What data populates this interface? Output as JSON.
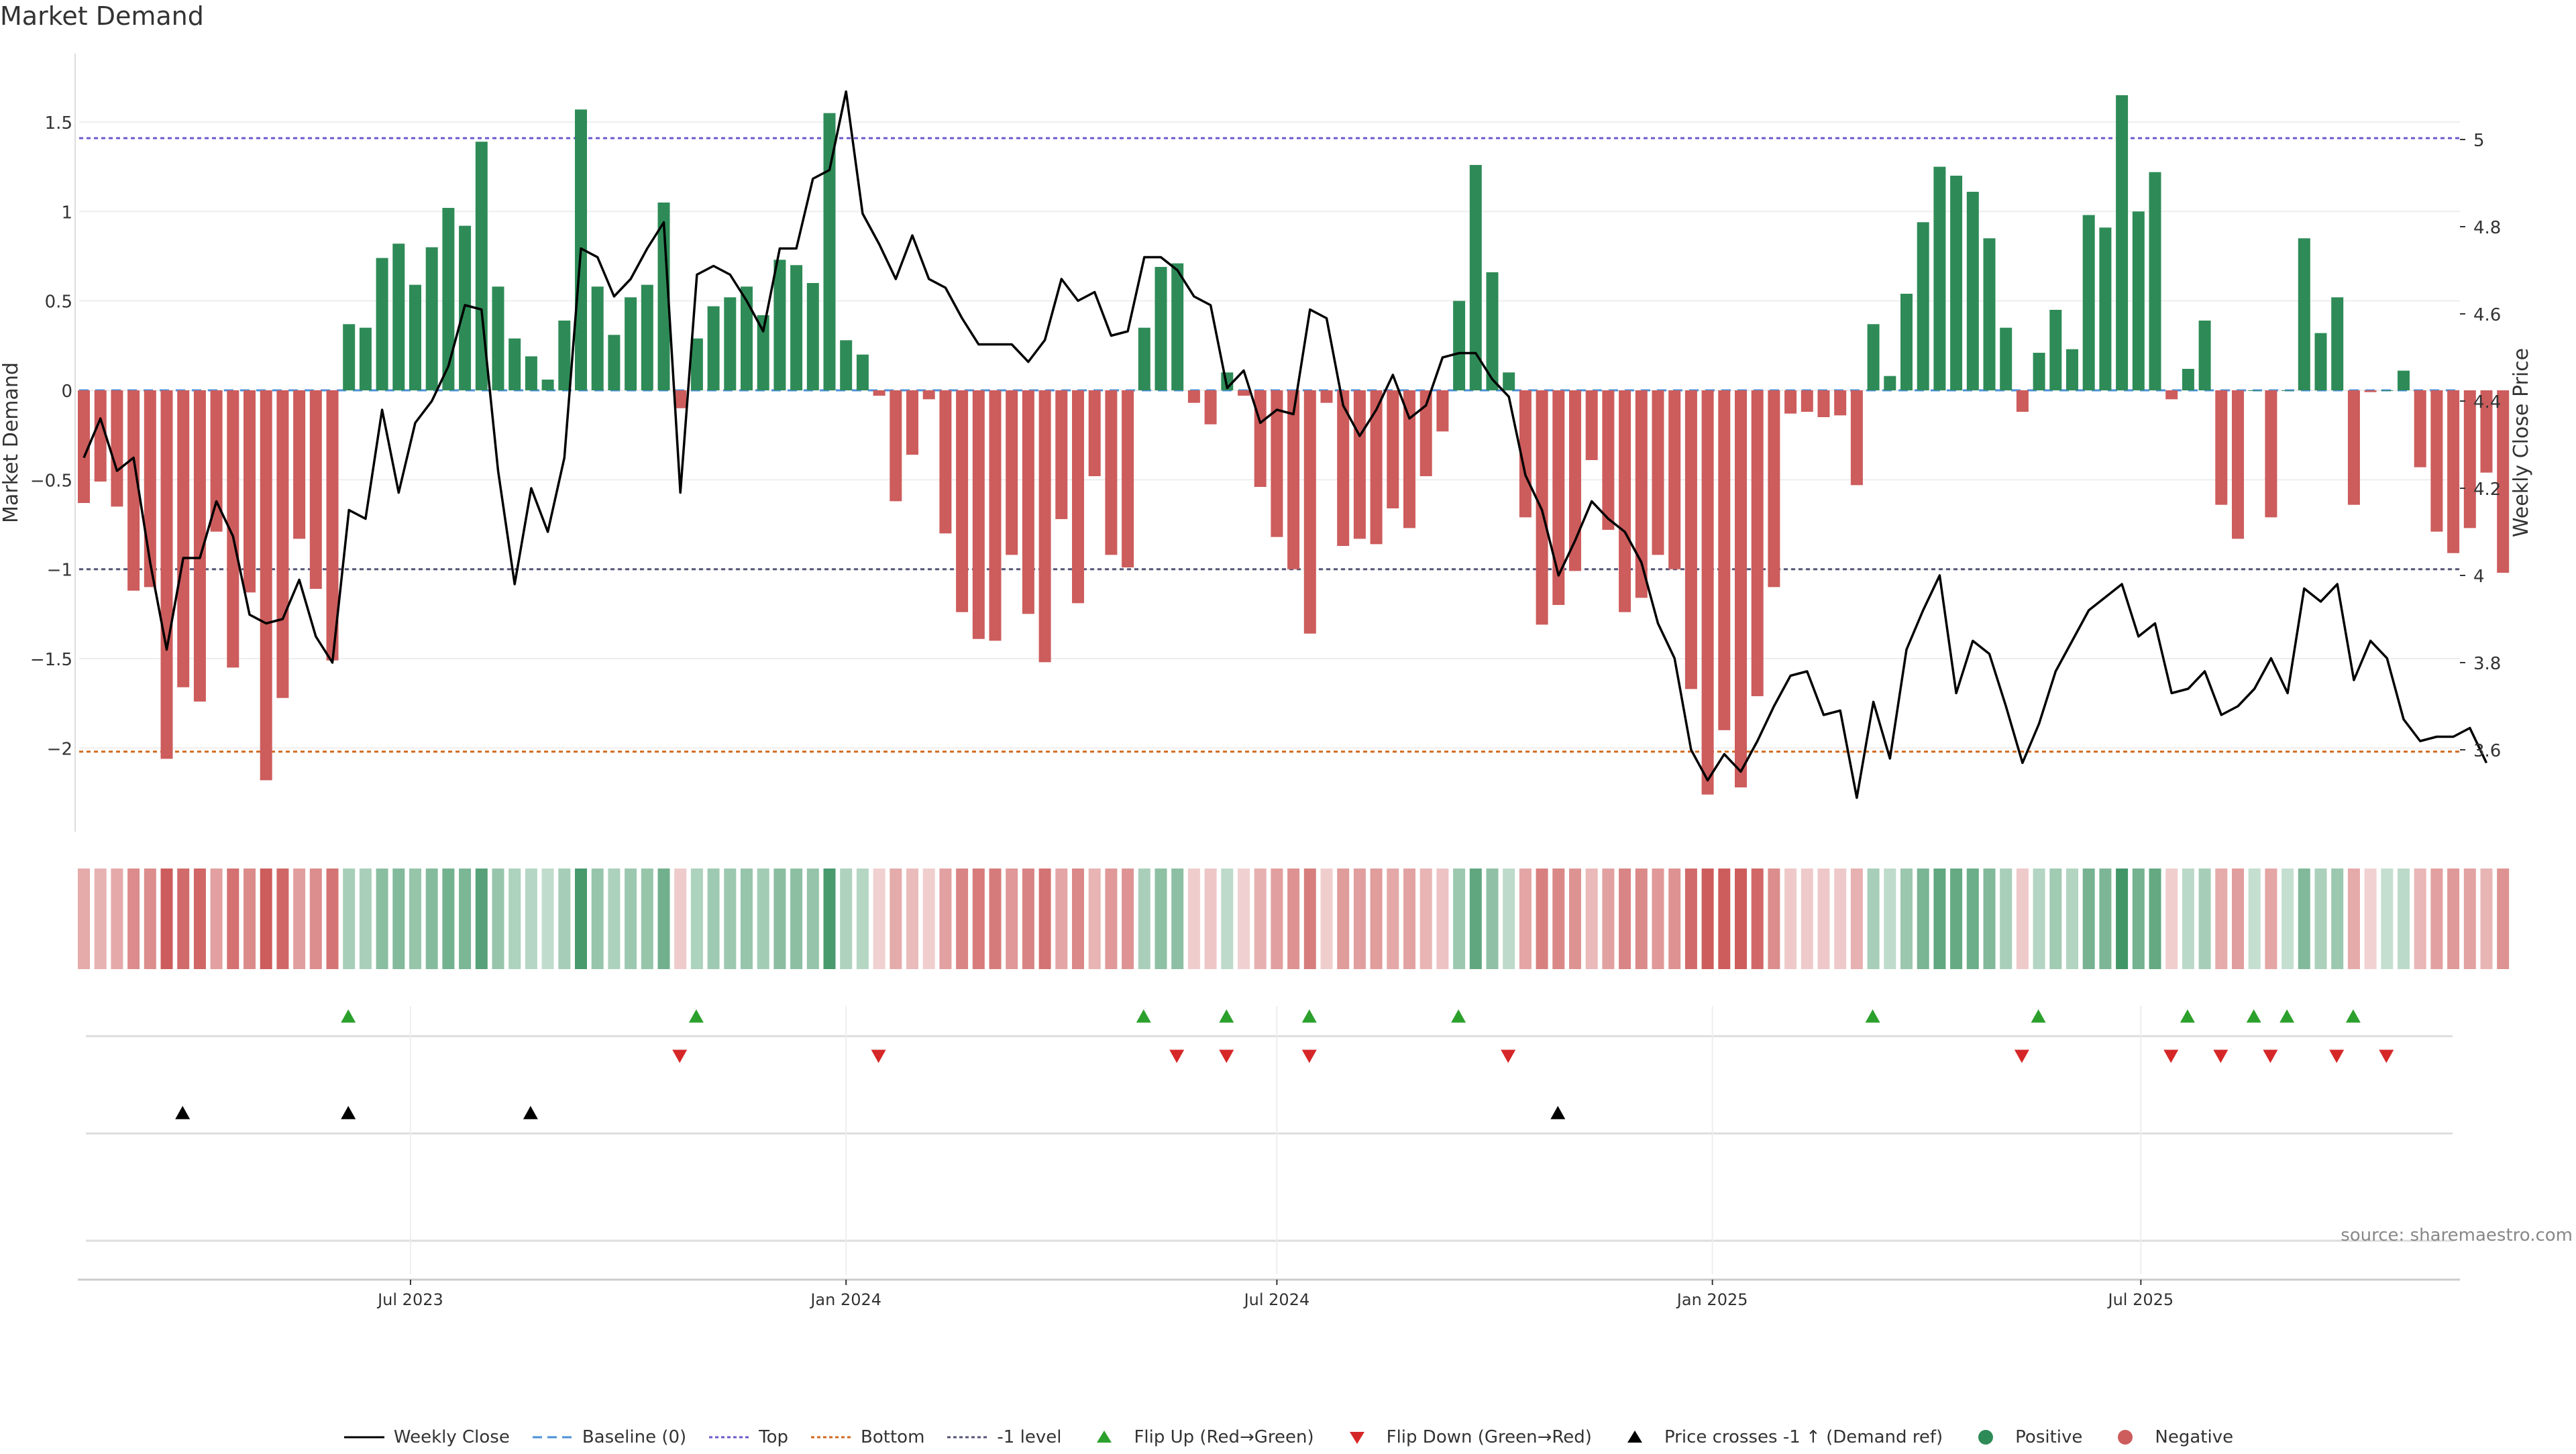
{
  "title": "Market Demand",
  "source": "source: sharemaestro.com",
  "colors": {
    "positive": "#2e8b57",
    "negative": "#cd5c5c",
    "price": "#000000",
    "baseline": "#4a90d9",
    "top": "#6a5acd",
    "bottom": "#d2691e",
    "minus1": "#555577",
    "flip_up": "#2ca02c",
    "flip_down": "#d62728",
    "cross": "#000000"
  },
  "legend": [
    {
      "key": "price",
      "label": "Weekly Close",
      "shape": "line"
    },
    {
      "key": "baseline",
      "label": "Baseline (0)",
      "shape": "dash"
    },
    {
      "key": "top",
      "label": "Top",
      "shape": "dot"
    },
    {
      "key": "bottom",
      "label": "Bottom",
      "shape": "dot"
    },
    {
      "key": "minus1",
      "label": "-1 level",
      "shape": "dot"
    },
    {
      "key": "flip_up",
      "label": "Flip Up (Red→Green)",
      "shape": "tri-up"
    },
    {
      "key": "flip_down",
      "label": "Flip Down (Green→Red)",
      "shape": "tri-down"
    },
    {
      "key": "cross",
      "label": "Price crosses -1 ↑ (Demand ref)",
      "shape": "tri-up"
    },
    {
      "key": "positive",
      "label": "Positive",
      "shape": "circle"
    },
    {
      "key": "negative",
      "label": "Negative",
      "shape": "circle"
    }
  ],
  "chart_data": {
    "type": "bar",
    "title": "Market Demand",
    "ylabel": "Market Demand",
    "y2label": "Weekly Close Price",
    "ylim": [
      -2.4,
      1.9
    ],
    "y2lim": [
      3.42,
      5.21
    ],
    "yticks": [
      1.5,
      1,
      0.5,
      0,
      -0.5,
      -1,
      -1.5,
      -2
    ],
    "ytick_labels": [
      "1.5",
      "1",
      "0.5",
      "0",
      "−0.5",
      "−1",
      "−1.5",
      "−2"
    ],
    "y2ticks": [
      5,
      4.8,
      4.6,
      4.4,
      4.2,
      4,
      3.8,
      3.6
    ],
    "y2tick_labels": [
      "5",
      "4.8",
      "4.6",
      "4.4",
      "4.2",
      "4",
      "3.8",
      "3.6"
    ],
    "top_level": 1.41,
    "bottom_level": -2.02,
    "minus1_level": -1.0,
    "start_date": "2023-02-13",
    "x_ticks": [
      {
        "date": "2023-07-01",
        "label": "Jul 2023"
      },
      {
        "date": "2024-01-01",
        "label": "Jan 2024"
      },
      {
        "date": "2024-07-01",
        "label": "Jul 2024"
      },
      {
        "date": "2025-01-01",
        "label": "Jan 2025"
      },
      {
        "date": "2025-07-01",
        "label": "Jul 2025"
      }
    ],
    "demand": [
      -0.63,
      -0.51,
      -0.65,
      -1.12,
      -1.1,
      -2.06,
      -1.66,
      -1.74,
      -0.79,
      -1.55,
      -1.13,
      -2.18,
      -1.72,
      -0.83,
      -1.11,
      -1.51,
      0.37,
      0.35,
      0.74,
      0.82,
      0.59,
      0.8,
      1.02,
      0.92,
      1.39,
      0.58,
      0.29,
      0.19,
      0.06,
      0.39,
      1.57,
      0.58,
      0.31,
      0.52,
      0.59,
      1.05,
      -0.1,
      0.29,
      0.47,
      0.52,
      0.58,
      0.42,
      0.73,
      0.7,
      0.6,
      1.55,
      0.28,
      0.2,
      -0.03,
      -0.62,
      -0.36,
      -0.05,
      -0.8,
      -1.24,
      -1.39,
      -1.4,
      -0.92,
      -1.25,
      -1.52,
      -0.72,
      -1.19,
      -0.48,
      -0.92,
      -0.99,
      0.35,
      0.69,
      0.71,
      -0.07,
      -0.19,
      0.1,
      -0.03,
      -0.54,
      -0.82,
      -1.0,
      -1.36,
      -0.07,
      -0.87,
      -0.83,
      -0.86,
      -0.66,
      -0.77,
      -0.48,
      -0.23,
      0.5,
      1.26,
      0.66,
      0.1,
      -0.71,
      -1.31,
      -1.2,
      -1.01,
      -0.39,
      -0.78,
      -1.24,
      -1.16,
      -0.92,
      -1.0,
      -1.67,
      -2.26,
      -1.9,
      -2.22,
      -1.71,
      -1.1,
      -0.13,
      -0.12,
      -0.15,
      -0.14,
      -0.53,
      0.37,
      0.08,
      0.54,
      0.94,
      1.25,
      1.2,
      1.11,
      0.85,
      0.35,
      -0.12,
      0.21,
      0.45,
      0.23,
      0.98,
      0.91,
      1.65,
      1.0,
      1.22,
      -0.05,
      0.12,
      0.39,
      -0.64,
      -0.83,
      0.0,
      -0.71,
      0.0,
      0.85,
      0.32,
      0.52,
      -0.64,
      -0.01,
      0.0,
      0.11,
      -0.43,
      -0.79,
      -0.91,
      -0.77,
      -0.46,
      -1.02
    ],
    "price": [
      4.27,
      4.36,
      4.24,
      4.27,
      4.03,
      3.83,
      4.04,
      4.04,
      4.17,
      4.09,
      3.91,
      3.89,
      3.9,
      3.99,
      3.86,
      3.8,
      4.15,
      4.13,
      4.38,
      4.19,
      4.35,
      4.4,
      4.48,
      4.62,
      4.61,
      4.24,
      3.98,
      4.2,
      4.1,
      4.27,
      4.75,
      4.73,
      4.64,
      4.68,
      4.75,
      4.81,
      4.19,
      4.69,
      4.71,
      4.69,
      4.63,
      4.56,
      4.75,
      4.75,
      4.91,
      4.93,
      5.11,
      4.83,
      4.76,
      4.68,
      4.78,
      4.68,
      4.66,
      4.59,
      4.53,
      4.53,
      4.53,
      4.49,
      4.54,
      4.68,
      4.63,
      4.65,
      4.55,
      4.56,
      4.73,
      4.73,
      4.7,
      4.64,
      4.62,
      4.43,
      4.47,
      4.35,
      4.38,
      4.37,
      4.61,
      4.59,
      4.39,
      4.32,
      4.38,
      4.46,
      4.36,
      4.39,
      4.5,
      4.51,
      4.51,
      4.45,
      4.41,
      4.23,
      4.15,
      4.0,
      4.08,
      4.17,
      4.13,
      4.1,
      4.03,
      3.89,
      3.81,
      3.6,
      3.53,
      3.59,
      3.55,
      3.62,
      3.7,
      3.77,
      3.78,
      3.68,
      3.69,
      3.49,
      3.71,
      3.58,
      3.83,
      3.92,
      4.0,
      3.73,
      3.85,
      3.82,
      3.7,
      3.57,
      3.66,
      3.78,
      3.85,
      3.92,
      3.95,
      3.98,
      3.86,
      3.89,
      3.73,
      3.74,
      3.78,
      3.68,
      3.7,
      3.74,
      3.81,
      3.73,
      3.97,
      3.94,
      3.98,
      3.76,
      3.85,
      3.81,
      3.67,
      3.62,
      3.63,
      3.63,
      3.65,
      3.57
    ],
    "flip_up": [
      16,
      37,
      64,
      69,
      74,
      83,
      108,
      118,
      127,
      131,
      133,
      137
    ],
    "flip_down": [
      36,
      48,
      66,
      69,
      74,
      86,
      117,
      126,
      129,
      132,
      136,
      139
    ],
    "price_cross_up": [
      6,
      16,
      27,
      89
    ]
  }
}
